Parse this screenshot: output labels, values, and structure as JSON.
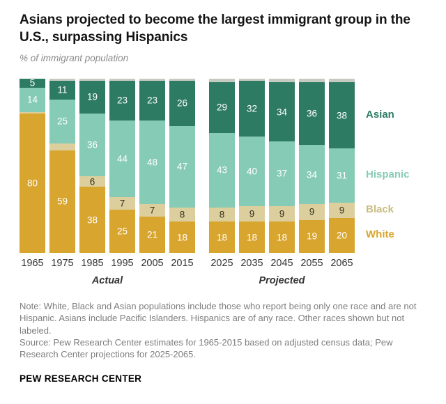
{
  "header": {
    "title": "Asians projected to become the largest immigrant group in the U.S., surpassing Hispanics",
    "subtitle": "% of immigrant population"
  },
  "chart_data": {
    "type": "bar",
    "variant": "stacked-100",
    "title": "Asians projected to become the largest immigrant group in the U.S., surpassing Hispanics",
    "ylabel": "% of immigrant population",
    "ylim": [
      0,
      100
    ],
    "categories": [
      "1965",
      "1975",
      "1985",
      "1995",
      "2005",
      "2015",
      "2025",
      "2035",
      "2045",
      "2055",
      "2065"
    ],
    "actual_count": 6,
    "group_labels": {
      "actual": "Actual",
      "projected": "Projected"
    },
    "series": [
      {
        "name": "White",
        "color": "#d8a52e",
        "label_color": "#ffffff",
        "values": [
          80,
          59,
          38,
          25,
          21,
          18,
          18,
          18,
          18,
          19,
          20
        ]
      },
      {
        "name": "Black",
        "color": "#dccf9d",
        "label_color": "#33301c",
        "values": [
          1,
          4,
          6,
          7,
          7,
          8,
          8,
          9,
          9,
          9,
          9
        ],
        "show_labels": [
          false,
          false,
          true,
          true,
          true,
          true,
          true,
          true,
          true,
          true,
          true
        ]
      },
      {
        "name": "Hispanic",
        "color": "#85cbb5",
        "label_color": "#ffffff",
        "values": [
          14,
          25,
          36,
          44,
          48,
          47,
          43,
          40,
          37,
          34,
          31
        ]
      },
      {
        "name": "Asian",
        "color": "#2e7b64",
        "label_color": "#ffffff",
        "values": [
          5,
          11,
          19,
          23,
          23,
          26,
          29,
          32,
          34,
          36,
          38
        ]
      },
      {
        "name": "Other",
        "color": "#c6cbc2",
        "show_labels": false,
        "values": [
          0,
          1,
          1,
          1,
          1,
          1,
          2,
          1,
          2,
          2,
          2
        ]
      }
    ],
    "legend": [
      {
        "label": "Asian",
        "color": "#2e7b64"
      },
      {
        "label": "Hispanic",
        "color": "#85cbb5"
      },
      {
        "label": "Black",
        "color": "#c9bc80"
      },
      {
        "label": "White",
        "color": "#d8a52e"
      }
    ],
    "legend_position": "right",
    "grid": false
  },
  "footer": {
    "note": "Note: White, Black and Asian populations include those who report being only one race and are not Hispanic. Asians include Pacific Islanders. Hispanics are of any race. Other races shown but not labeled.",
    "source": "Source: Pew Research Center estimates for 1965-2015 based on adjusted census data; Pew Research Center projections for 2025-2065.",
    "brand": "PEW RESEARCH CENTER"
  }
}
